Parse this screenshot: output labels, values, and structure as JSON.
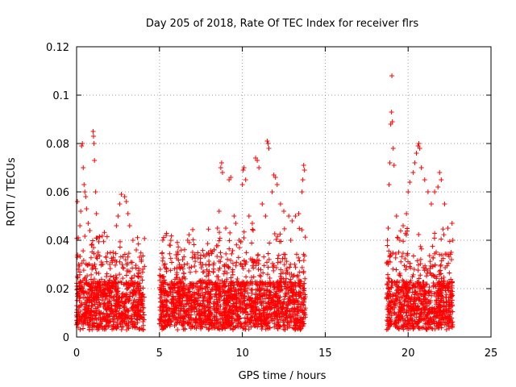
{
  "chart_data": {
    "type": "scatter",
    "title": "Day 205 of 2018, Rate Of TEC Index for receiver flrs",
    "xlabel": "GPS time / hours",
    "ylabel": "ROTI / TECUs",
    "xlim": [
      0,
      25
    ],
    "ylim": [
      0,
      0.12
    ],
    "x_ticks": [
      0,
      5,
      10,
      15,
      20,
      25
    ],
    "x_tick_labels": [
      "0",
      "5",
      "10",
      "15",
      "20",
      "25"
    ],
    "y_ticks": [
      0,
      0.02,
      0.04,
      0.06,
      0.08,
      0.1,
      0.12
    ],
    "y_tick_labels": [
      "0",
      "0.02",
      "0.04",
      "0.06",
      "0.08",
      "0.1",
      "0.12"
    ],
    "grid": true,
    "marker": "+",
    "color": "#ff0000",
    "data_coverage": [
      {
        "start_hour": 0.0,
        "end_hour": 4.1
      },
      {
        "start_hour": 5.0,
        "end_hour": 13.8
      },
      {
        "start_hour": 18.7,
        "end_hour": 22.7
      }
    ],
    "series": [
      {
        "name": "ROTI",
        "points": [
          [
            0.05,
            0.056
          ],
          [
            0.1,
            0.041
          ],
          [
            0.2,
            0.046
          ],
          [
            0.25,
            0.052
          ],
          [
            0.3,
            0.079
          ],
          [
            0.35,
            0.08
          ],
          [
            0.4,
            0.07
          ],
          [
            0.45,
            0.063
          ],
          [
            0.5,
            0.06
          ],
          [
            0.55,
            0.058
          ],
          [
            0.6,
            0.053
          ],
          [
            0.7,
            0.047
          ],
          [
            0.8,
            0.044
          ],
          [
            0.9,
            0.038
          ],
          [
            1.0,
            0.085
          ],
          [
            1.02,
            0.083
          ],
          [
            1.05,
            0.08
          ],
          [
            1.08,
            0.073
          ],
          [
            1.15,
            0.06
          ],
          [
            1.2,
            0.051
          ],
          [
            1.3,
            0.035
          ],
          [
            1.5,
            0.03
          ],
          [
            1.8,
            0.025
          ],
          [
            2.0,
            0.03
          ],
          [
            2.2,
            0.035
          ],
          [
            2.4,
            0.046
          ],
          [
            2.5,
            0.05
          ],
          [
            2.6,
            0.055
          ],
          [
            2.7,
            0.059
          ],
          [
            2.9,
            0.058
          ],
          [
            3.0,
            0.056
          ],
          [
            3.1,
            0.051
          ],
          [
            3.2,
            0.046
          ],
          [
            3.4,
            0.04
          ],
          [
            3.6,
            0.036
          ],
          [
            3.8,
            0.033
          ],
          [
            4.0,
            0.028
          ],
          [
            5.05,
            0.028
          ],
          [
            5.2,
            0.04
          ],
          [
            5.4,
            0.042
          ],
          [
            5.6,
            0.038
          ],
          [
            6.0,
            0.034
          ],
          [
            6.2,
            0.03
          ],
          [
            6.4,
            0.032
          ],
          [
            6.7,
            0.04
          ],
          [
            6.8,
            0.039
          ],
          [
            7.0,
            0.035
          ],
          [
            7.5,
            0.03
          ],
          [
            8.0,
            0.03
          ],
          [
            8.3,
            0.036
          ],
          [
            8.5,
            0.045
          ],
          [
            8.6,
            0.052
          ],
          [
            8.7,
            0.07
          ],
          [
            8.75,
            0.072
          ],
          [
            8.8,
            0.068
          ],
          [
            9.0,
            0.045
          ],
          [
            9.2,
            0.065
          ],
          [
            9.3,
            0.066
          ],
          [
            9.5,
            0.05
          ],
          [
            9.6,
            0.047
          ],
          [
            9.8,
            0.04
          ],
          [
            10.0,
            0.063
          ],
          [
            10.05,
            0.069
          ],
          [
            10.1,
            0.07
          ],
          [
            10.2,
            0.065
          ],
          [
            10.4,
            0.05
          ],
          [
            10.6,
            0.047
          ],
          [
            10.8,
            0.074
          ],
          [
            10.9,
            0.073
          ],
          [
            11.0,
            0.07
          ],
          [
            11.2,
            0.055
          ],
          [
            11.4,
            0.05
          ],
          [
            11.5,
            0.081
          ],
          [
            11.55,
            0.08
          ],
          [
            11.6,
            0.078
          ],
          [
            11.8,
            0.06
          ],
          [
            11.9,
            0.067
          ],
          [
            12.0,
            0.066
          ],
          [
            12.1,
            0.063
          ],
          [
            12.3,
            0.055
          ],
          [
            12.5,
            0.052
          ],
          [
            12.8,
            0.05
          ],
          [
            13.0,
            0.048
          ],
          [
            13.2,
            0.05
          ],
          [
            13.4,
            0.051
          ],
          [
            13.6,
            0.06
          ],
          [
            13.65,
            0.065
          ],
          [
            13.7,
            0.071
          ],
          [
            13.75,
            0.069
          ],
          [
            18.75,
            0.04
          ],
          [
            18.8,
            0.045
          ],
          [
            18.85,
            0.063
          ],
          [
            18.9,
            0.072
          ],
          [
            18.95,
            0.088
          ],
          [
            19.0,
            0.093
          ],
          [
            19.02,
            0.108
          ],
          [
            19.05,
            0.089
          ],
          [
            19.1,
            0.078
          ],
          [
            19.15,
            0.071
          ],
          [
            19.3,
            0.05
          ],
          [
            19.5,
            0.04
          ],
          [
            19.7,
            0.046
          ],
          [
            19.9,
            0.051
          ],
          [
            20.0,
            0.06
          ],
          [
            20.1,
            0.064
          ],
          [
            20.3,
            0.068
          ],
          [
            20.4,
            0.072
          ],
          [
            20.5,
            0.076
          ],
          [
            20.6,
            0.079
          ],
          [
            20.65,
            0.08
          ],
          [
            20.7,
            0.078
          ],
          [
            20.8,
            0.07
          ],
          [
            21.0,
            0.065
          ],
          [
            21.2,
            0.06
          ],
          [
            21.4,
            0.055
          ],
          [
            21.6,
            0.06
          ],
          [
            21.8,
            0.062
          ],
          [
            21.9,
            0.068
          ],
          [
            22.0,
            0.065
          ],
          [
            22.2,
            0.055
          ],
          [
            22.4,
            0.045
          ],
          [
            22.6,
            0.035
          ],
          [
            22.65,
            0.047
          ],
          [
            22.7,
            0.04
          ]
        ]
      }
    ]
  }
}
